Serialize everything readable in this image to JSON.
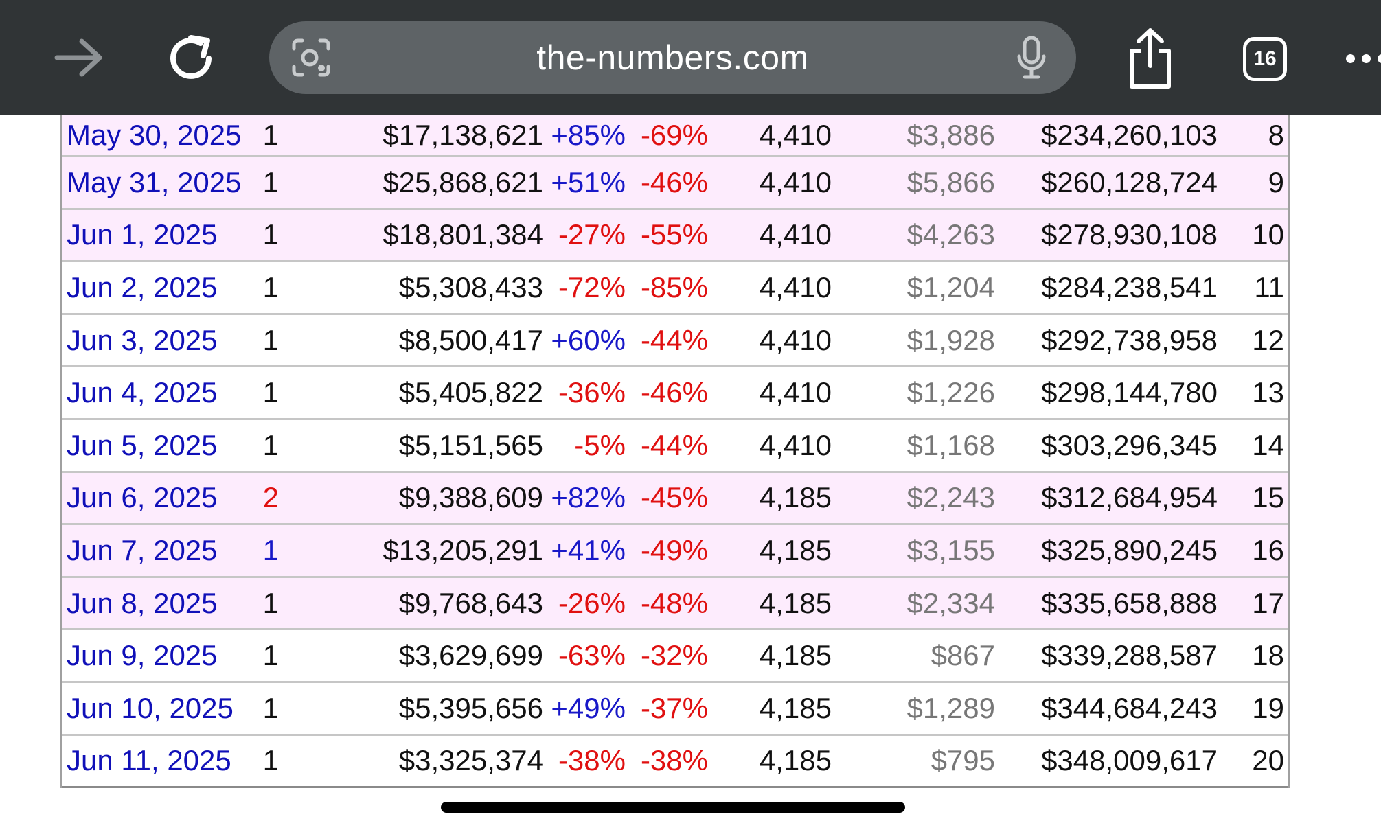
{
  "browser": {
    "url": "the-numbers.com",
    "tab_count": "16",
    "icons": {
      "forward": "forward-arrow-icon",
      "reload": "reload-icon",
      "lens": "camera-search-icon",
      "mic": "microphone-icon",
      "share": "share-icon",
      "more": "more-icon"
    }
  },
  "table": {
    "rows": [
      {
        "date": "May 30, 2025",
        "rank": "1",
        "gross": "$17,138,621",
        "change": "+85%",
        "week": "-69%",
        "theaters": "4,410",
        "avg": "$3,886",
        "total": "$234,260,103",
        "day": "8"
      },
      {
        "date": "May 31, 2025",
        "rank": "1",
        "gross": "$25,868,621",
        "change": "+51%",
        "week": "-46%",
        "theaters": "4,410",
        "avg": "$5,866",
        "total": "$260,128,724",
        "day": "9"
      },
      {
        "date": "Jun 1, 2025",
        "rank": "1",
        "gross": "$18,801,384",
        "change": "-27%",
        "week": "-55%",
        "theaters": "4,410",
        "avg": "$4,263",
        "total": "$278,930,108",
        "day": "10"
      },
      {
        "date": "Jun 2, 2025",
        "rank": "1",
        "gross": "$5,308,433",
        "change": "-72%",
        "week": "-85%",
        "theaters": "4,410",
        "avg": "$1,204",
        "total": "$284,238,541",
        "day": "11"
      },
      {
        "date": "Jun 3, 2025",
        "rank": "1",
        "gross": "$8,500,417",
        "change": "+60%",
        "week": "-44%",
        "theaters": "4,410",
        "avg": "$1,928",
        "total": "$292,738,958",
        "day": "12"
      },
      {
        "date": "Jun 4, 2025",
        "rank": "1",
        "gross": "$5,405,822",
        "change": "-36%",
        "week": "-46%",
        "theaters": "4,410",
        "avg": "$1,226",
        "total": "$298,144,780",
        "day": "13"
      },
      {
        "date": "Jun 5, 2025",
        "rank": "1",
        "gross": "$5,151,565",
        "change": "-5%",
        "week": "-44%",
        "theaters": "4,410",
        "avg": "$1,168",
        "total": "$303,296,345",
        "day": "14"
      },
      {
        "date": "Jun 6, 2025",
        "rank": "2",
        "gross": "$9,388,609",
        "change": "+82%",
        "week": "-45%",
        "theaters": "4,185",
        "avg": "$2,243",
        "total": "$312,684,954",
        "day": "15"
      },
      {
        "date": "Jun 7, 2025",
        "rank": "1",
        "gross": "$13,205,291",
        "change": "+41%",
        "week": "-49%",
        "theaters": "4,185",
        "avg": "$3,155",
        "total": "$325,890,245",
        "day": "16"
      },
      {
        "date": "Jun 8, 2025",
        "rank": "1",
        "gross": "$9,768,643",
        "change": "-26%",
        "week": "-48%",
        "theaters": "4,185",
        "avg": "$2,334",
        "total": "$335,658,888",
        "day": "17"
      },
      {
        "date": "Jun 9, 2025",
        "rank": "1",
        "gross": "$3,629,699",
        "change": "-63%",
        "week": "-32%",
        "theaters": "4,185",
        "avg": "$867",
        "total": "$339,288,587",
        "day": "18"
      },
      {
        "date": "Jun 10, 2025",
        "rank": "1",
        "gross": "$5,395,656",
        "change": "+49%",
        "week": "-37%",
        "theaters": "4,185",
        "avg": "$1,289",
        "total": "$344,684,243",
        "day": "19"
      },
      {
        "date": "Jun 11, 2025",
        "rank": "1",
        "gross": "$3,325,374",
        "change": "-38%",
        "week": "-38%",
        "theaters": "4,185",
        "avg": "$795",
        "total": "$348,009,617",
        "day": "20"
      }
    ],
    "weekend_rows": [
      0,
      1,
      2,
      7,
      8,
      9
    ],
    "rank_colors": {
      "7": "red",
      "8": "blue"
    }
  }
}
